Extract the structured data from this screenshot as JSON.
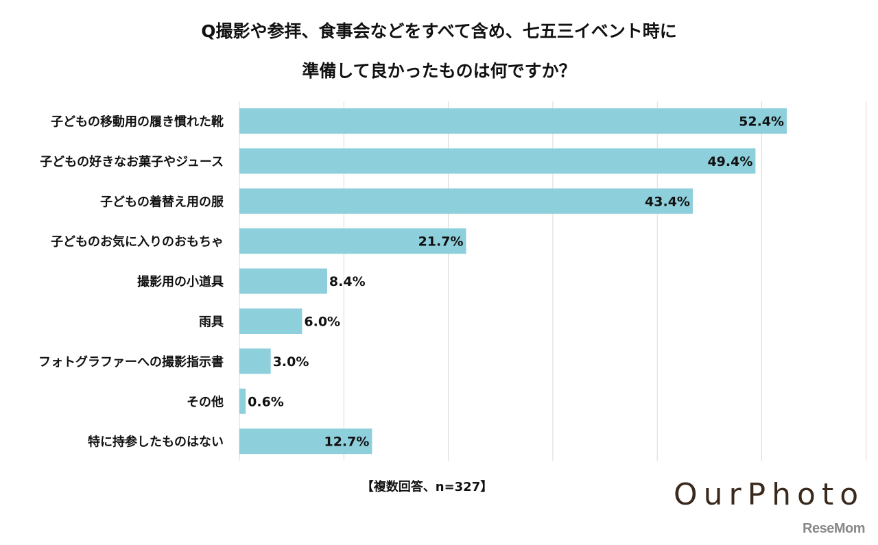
{
  "chart_data": {
    "type": "bar",
    "orientation": "horizontal",
    "title_lines": [
      "Q撮影や参拝、食事会などをすべて含め、七五三イベント時に",
      "準備して良かったものは何ですか？"
    ],
    "categories": [
      "子どもの移動用の履き慣れた靴",
      "子どもの好きなお菓子やジュース",
      "子どもの着替え用の服",
      "子どものお気に入りのおもちゃ",
      "撮影用の小道具",
      "雨具",
      "フォトグラファーへの撮影指示書",
      "その他",
      "特に持参したものはない"
    ],
    "values": [
      52.4,
      49.4,
      43.4,
      21.7,
      8.4,
      6.0,
      3.0,
      0.6,
      12.7
    ],
    "data_labels": [
      "52.4%",
      "49.4%",
      "43.4%",
      "21.7%",
      "8.4%",
      "6.0%",
      "3.0%",
      "0.6%",
      "12.7%"
    ],
    "unit": "%",
    "xlim": [
      0,
      60
    ],
    "grid": true,
    "grid_step": 10,
    "bar_color": "#8ecfdc",
    "note": "【複数回答、n=327】"
  },
  "branding": {
    "logo": "OurPhoto",
    "source": "ReseMom"
  }
}
